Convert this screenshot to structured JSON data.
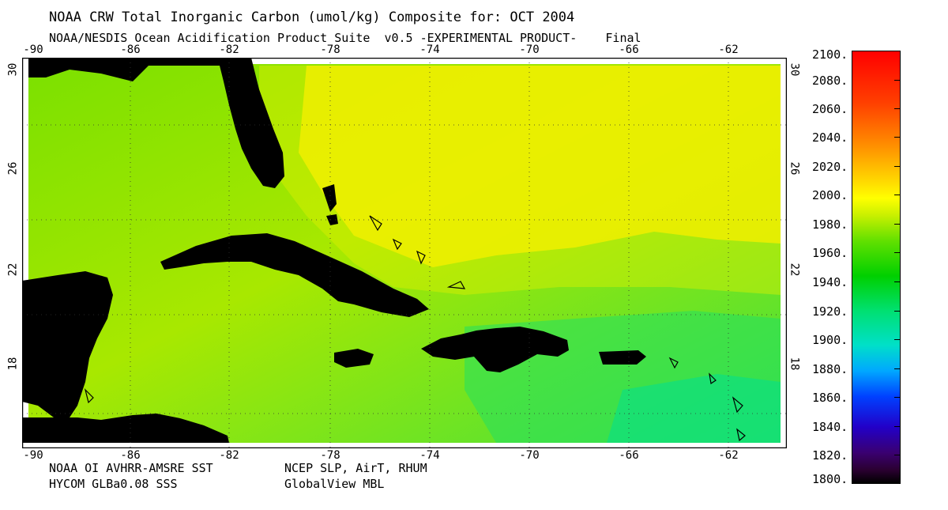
{
  "header": {
    "title": "NOAA CRW Total Inorganic Carbon (umol/kg) Composite for: OCT 2004",
    "subtitle": "NOAA/NESDIS Ocean Acidification Product Suite  v0.5 -EXPERIMENTAL PRODUCT-    Final"
  },
  "map": {
    "longitude_ticks": [
      "-90",
      "-86",
      "-82",
      "-78",
      "-74",
      "-70",
      "-66",
      "-62"
    ],
    "latitude_ticks": [
      "30",
      "26",
      "22",
      "18"
    ],
    "colors": {
      "land": "#000000",
      "ocean_low": "#00e070",
      "ocean_mid": "#7ae000",
      "ocean_high": "#ffee00"
    }
  },
  "colorbar": {
    "labels": [
      "2100.",
      "2080.",
      "2060.",
      "2040.",
      "2020.",
      "2000.",
      "1980.",
      "1960.",
      "1940.",
      "1920.",
      "1900.",
      "1880.",
      "1860.",
      "1840.",
      "1820.",
      "1800."
    ]
  },
  "footer": {
    "source_1": "NOAA OI AVHRR-AMSRE SST",
    "source_2": "HYCOM GLBa0.08 SSS",
    "source_3": "NCEP SLP, AirT, RHUM",
    "source_4": "GlobalView MBL"
  }
}
